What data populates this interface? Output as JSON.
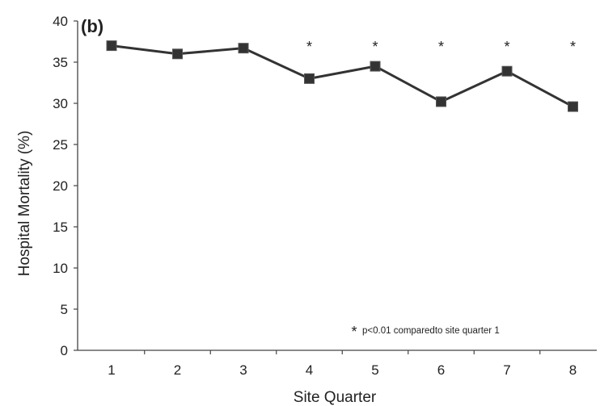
{
  "chart_data": {
    "type": "line",
    "panel_label": "(b)",
    "xlabel": "Site Quarter",
    "ylabel": "Hospital Mortality (%)",
    "categories": [
      "1",
      "2",
      "3",
      "4",
      "5",
      "6",
      "7",
      "8"
    ],
    "series": [
      {
        "values": [
          37.0,
          36.0,
          36.7,
          33.0,
          34.5,
          30.2,
          33.9,
          29.6
        ]
      }
    ],
    "ylim": [
      0,
      40
    ],
    "yticks": [
      "0",
      "5",
      "10",
      "15",
      "20",
      "25",
      "30",
      "35",
      "40"
    ],
    "grid": false,
    "significance_markers": [
      {
        "category": "4",
        "symbol": "*"
      },
      {
        "category": "5",
        "symbol": "*"
      },
      {
        "category": "6",
        "symbol": "*"
      },
      {
        "category": "7",
        "symbol": "*"
      },
      {
        "category": "8",
        "symbol": "*"
      }
    ],
    "annotation": {
      "symbol": "*",
      "text": "p<0.01 comparedto site quarter 1"
    },
    "colors": {
      "line": "#333333",
      "marker": "#333333",
      "axis": "#444444"
    }
  }
}
